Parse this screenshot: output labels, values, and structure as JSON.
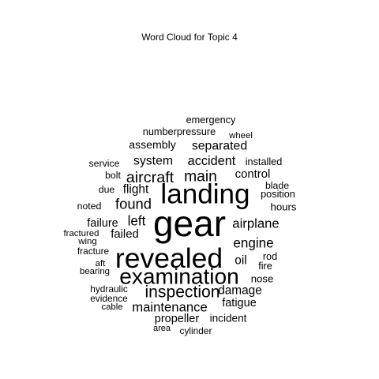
{
  "chart_data": {
    "type": "wordcloud",
    "title": "Word Cloud for Topic 4",
    "color": "#000000",
    "words": [
      {
        "text": "gear",
        "weight": 1.0
      },
      {
        "text": "revealed",
        "weight": 0.76
      },
      {
        "text": "landing",
        "weight": 0.75
      },
      {
        "text": "examination",
        "weight": 0.59
      },
      {
        "text": "inspection",
        "weight": 0.43
      },
      {
        "text": "aircraft",
        "weight": 0.4
      },
      {
        "text": "main",
        "weight": 0.39
      },
      {
        "text": "found",
        "weight": 0.37
      },
      {
        "text": "left",
        "weight": 0.34
      },
      {
        "text": "engine",
        "weight": 0.34
      },
      {
        "text": "maintenance",
        "weight": 0.33
      },
      {
        "text": "airplane",
        "weight": 0.33
      },
      {
        "text": "accident",
        "weight": 0.32
      },
      {
        "text": "system",
        "weight": 0.31
      },
      {
        "text": "separated",
        "weight": 0.31
      },
      {
        "text": "damage",
        "weight": 0.3
      },
      {
        "text": "oil",
        "weight": 0.3
      },
      {
        "text": "flight",
        "weight": 0.3
      },
      {
        "text": "failed",
        "weight": 0.29
      },
      {
        "text": "control",
        "weight": 0.29
      },
      {
        "text": "fatigue",
        "weight": 0.28
      },
      {
        "text": "propeller",
        "weight": 0.28
      },
      {
        "text": "failure",
        "weight": 0.28
      },
      {
        "text": "assembly",
        "weight": 0.27
      },
      {
        "text": "incident",
        "weight": 0.26
      },
      {
        "text": "nose",
        "weight": 0.25
      },
      {
        "text": "hours",
        "weight": 0.25
      },
      {
        "text": "emergency",
        "weight": 0.24
      },
      {
        "text": "numberpressure",
        "weight": 0.24
      },
      {
        "text": "installed",
        "weight": 0.24
      },
      {
        "text": "position",
        "weight": 0.24
      },
      {
        "text": "rod",
        "weight": 0.24
      },
      {
        "text": "fire",
        "weight": 0.24
      },
      {
        "text": "service",
        "weight": 0.23
      },
      {
        "text": "bolt",
        "weight": 0.23
      },
      {
        "text": "noted",
        "weight": 0.23
      },
      {
        "text": "due",
        "weight": 0.23
      },
      {
        "text": "blade",
        "weight": 0.23
      },
      {
        "text": "fracture",
        "weight": 0.22
      },
      {
        "text": "hydraulic",
        "weight": 0.22
      },
      {
        "text": "evidence",
        "weight": 0.22
      },
      {
        "text": "cylinder",
        "weight": 0.22
      },
      {
        "text": "fractured",
        "weight": 0.21
      },
      {
        "text": "wheel",
        "weight": 0.21
      },
      {
        "text": "wing",
        "weight": 0.21
      },
      {
        "text": "aft",
        "weight": 0.21
      },
      {
        "text": "bearing",
        "weight": 0.21
      },
      {
        "text": "cable",
        "weight": 0.21
      },
      {
        "text": "area",
        "weight": 0.2
      }
    ]
  }
}
